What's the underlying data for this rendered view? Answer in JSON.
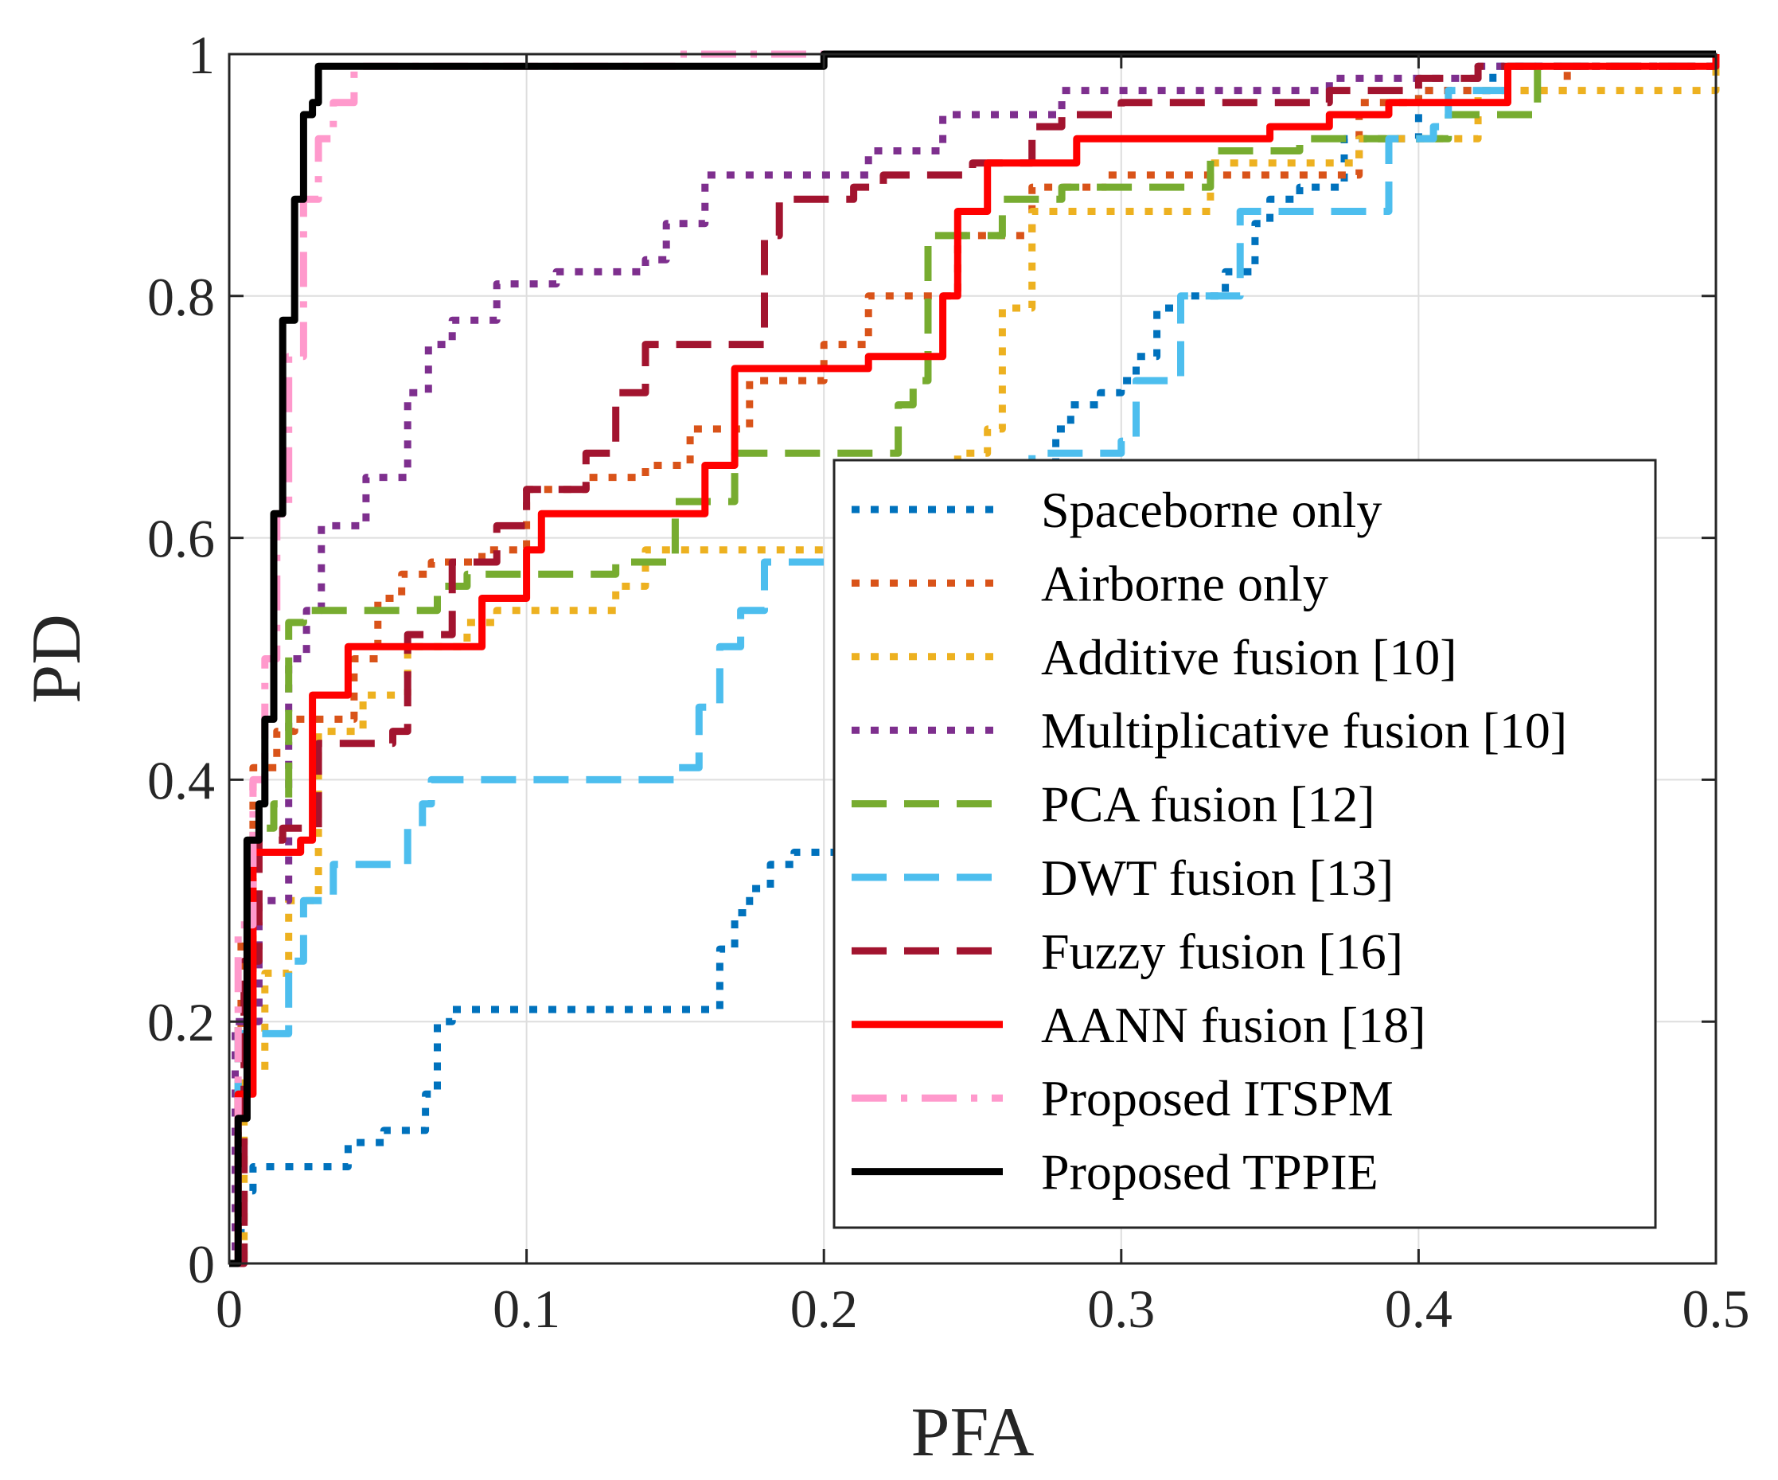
{
  "chart_data": {
    "type": "line",
    "title": "",
    "xlabel": "PFA",
    "ylabel": "PD",
    "xlim": [
      0,
      0.5
    ],
    "ylim": [
      0,
      1
    ],
    "xticks": [
      "0",
      "0.1",
      "0.2",
      "0.3",
      "0.4",
      "0.5"
    ],
    "yticks": [
      "0",
      "0.2",
      "0.4",
      "0.6",
      "0.8",
      "1"
    ],
    "grid": true,
    "legend_position": "lower-right",
    "series": [
      {
        "name": "Spaceborne only",
        "color": "#0072BD",
        "style": "dotted",
        "x": [
          0,
          0.004,
          0.008,
          0.033,
          0.04,
          0.052,
          0.062,
          0.066,
          0.07,
          0.075,
          0.16,
          0.165,
          0.17,
          0.175,
          0.182,
          0.19,
          0.2,
          0.215,
          0.25,
          0.272,
          0.278,
          0.283,
          0.293,
          0.3,
          0.305,
          0.312,
          0.32,
          0.335,
          0.345,
          0.35,
          0.36,
          0.375,
          0.4,
          0.425,
          0.5
        ],
        "y": [
          0,
          0.06,
          0.08,
          0.08,
          0.1,
          0.11,
          0.11,
          0.14,
          0.2,
          0.21,
          0.21,
          0.26,
          0.29,
          0.31,
          0.33,
          0.34,
          0.34,
          0.42,
          0.6,
          0.66,
          0.69,
          0.71,
          0.72,
          0.73,
          0.75,
          0.79,
          0.8,
          0.82,
          0.86,
          0.88,
          0.89,
          0.93,
          0.97,
          0.99,
          1.0
        ]
      },
      {
        "name": "Airborne only",
        "color": "#D95319",
        "style": "dotted",
        "x": [
          0,
          0.002,
          0.004,
          0.008,
          0.016,
          0.022,
          0.034,
          0.042,
          0.05,
          0.058,
          0.068,
          0.085,
          0.1,
          0.12,
          0.14,
          0.155,
          0.175,
          0.2,
          0.215,
          0.233,
          0.245,
          0.27,
          0.295,
          0.36,
          0.38,
          0.4,
          0.45,
          0.5
        ],
        "y": [
          0,
          0.18,
          0.27,
          0.41,
          0.44,
          0.45,
          0.45,
          0.5,
          0.55,
          0.57,
          0.58,
          0.59,
          0.64,
          0.65,
          0.66,
          0.69,
          0.73,
          0.76,
          0.8,
          0.8,
          0.85,
          0.89,
          0.9,
          0.9,
          0.96,
          0.97,
          0.99,
          1.0
        ]
      },
      {
        "name": "Additive fusion [10]",
        "color": "#EDB120",
        "style": "dotted",
        "x": [
          0,
          0.005,
          0.012,
          0.02,
          0.03,
          0.045,
          0.06,
          0.08,
          0.09,
          0.12,
          0.13,
          0.14,
          0.2,
          0.225,
          0.245,
          0.255,
          0.26,
          0.27,
          0.275,
          0.3,
          0.33,
          0.37,
          0.38,
          0.39,
          0.42,
          0.5
        ],
        "y": [
          0,
          0.16,
          0.24,
          0.3,
          0.44,
          0.47,
          0.51,
          0.53,
          0.54,
          0.54,
          0.56,
          0.59,
          0.59,
          0.61,
          0.67,
          0.69,
          0.79,
          0.87,
          0.87,
          0.87,
          0.91,
          0.91,
          0.93,
          0.93,
          0.97,
          1.0
        ]
      },
      {
        "name": "Multiplicative fusion [10]",
        "color": "#7E2F8E",
        "style": "dotted",
        "x": [
          0,
          0.002,
          0.01,
          0.02,
          0.026,
          0.031,
          0.037,
          0.046,
          0.06,
          0.067,
          0.075,
          0.09,
          0.11,
          0.14,
          0.147,
          0.16,
          0.2,
          0.215,
          0.24,
          0.255,
          0.28,
          0.32,
          0.37,
          0.42,
          0.5
        ],
        "y": [
          0,
          0.2,
          0.3,
          0.5,
          0.54,
          0.61,
          0.61,
          0.65,
          0.72,
          0.76,
          0.78,
          0.81,
          0.82,
          0.83,
          0.86,
          0.9,
          0.9,
          0.92,
          0.95,
          0.95,
          0.97,
          0.97,
          0.98,
          0.99,
          1.0
        ]
      },
      {
        "name": "PCA fusion [12]",
        "color": "#77AC30",
        "style": "dashed",
        "x": [
          0,
          0.003,
          0.008,
          0.015,
          0.02,
          0.025,
          0.055,
          0.07,
          0.08,
          0.1,
          0.13,
          0.15,
          0.165,
          0.17,
          0.2,
          0.22,
          0.225,
          0.23,
          0.235,
          0.26,
          0.28,
          0.33,
          0.36,
          0.41,
          0.44,
          0.5
        ],
        "y": [
          0,
          0.2,
          0.36,
          0.38,
          0.53,
          0.54,
          0.54,
          0.56,
          0.57,
          0.57,
          0.58,
          0.63,
          0.63,
          0.67,
          0.67,
          0.67,
          0.71,
          0.73,
          0.85,
          0.88,
          0.89,
          0.92,
          0.93,
          0.95,
          0.99,
          1.0
        ]
      },
      {
        "name": "DWT fusion [13]",
        "color": "#4DBEEE",
        "style": "dashed",
        "x": [
          0,
          0.003,
          0.018,
          0.02,
          0.025,
          0.035,
          0.04,
          0.06,
          0.065,
          0.068,
          0.145,
          0.15,
          0.158,
          0.165,
          0.172,
          0.18,
          0.2,
          0.23,
          0.27,
          0.3,
          0.305,
          0.32,
          0.34,
          0.375,
          0.39,
          0.405,
          0.41,
          0.43,
          0.5
        ],
        "y": [
          0,
          0.19,
          0.19,
          0.25,
          0.3,
          0.33,
          0.33,
          0.36,
          0.38,
          0.4,
          0.4,
          0.41,
          0.46,
          0.51,
          0.54,
          0.58,
          0.58,
          0.61,
          0.67,
          0.68,
          0.73,
          0.8,
          0.87,
          0.87,
          0.93,
          0.94,
          0.97,
          0.99,
          1.0
        ]
      },
      {
        "name": "Fuzzy fusion [16]",
        "color": "#A2142F",
        "style": "dashed",
        "x": [
          0,
          0.005,
          0.01,
          0.018,
          0.026,
          0.03,
          0.04,
          0.055,
          0.06,
          0.075,
          0.085,
          0.09,
          0.1,
          0.12,
          0.13,
          0.14,
          0.15,
          0.18,
          0.185,
          0.21,
          0.22,
          0.25,
          0.27,
          0.28,
          0.3,
          0.35,
          0.37,
          0.4,
          0.42,
          0.5
        ],
        "y": [
          0,
          0.25,
          0.35,
          0.36,
          0.36,
          0.43,
          0.43,
          0.44,
          0.52,
          0.58,
          0.58,
          0.61,
          0.64,
          0.67,
          0.72,
          0.76,
          0.76,
          0.85,
          0.88,
          0.89,
          0.9,
          0.91,
          0.94,
          0.95,
          0.96,
          0.96,
          0.97,
          0.98,
          0.99,
          1.0
        ]
      },
      {
        "name": "AANN fusion [18]",
        "color": "#FF0000",
        "style": "solid",
        "x": [
          0,
          0.003,
          0.008,
          0.012,
          0.024,
          0.028,
          0.036,
          0.04,
          0.06,
          0.085,
          0.09,
          0.1,
          0.105,
          0.12,
          0.155,
          0.16,
          0.165,
          0.17,
          0.18,
          0.215,
          0.23,
          0.24,
          0.245,
          0.255,
          0.275,
          0.285,
          0.3,
          0.35,
          0.37,
          0.39,
          0.42,
          0.43,
          0.46,
          0.5
        ],
        "y": [
          0,
          0.14,
          0.34,
          0.34,
          0.35,
          0.47,
          0.47,
          0.51,
          0.51,
          0.55,
          0.55,
          0.59,
          0.62,
          0.62,
          0.62,
          0.66,
          0.66,
          0.74,
          0.74,
          0.75,
          0.75,
          0.8,
          0.87,
          0.91,
          0.91,
          0.93,
          0.93,
          0.94,
          0.95,
          0.96,
          0.96,
          0.99,
          0.99,
          1.0
        ]
      },
      {
        "name": "Proposed ITSPM",
        "color": "#FF99CC",
        "style": "dashdot",
        "x": [
          0,
          0.003,
          0.008,
          0.012,
          0.016,
          0.02,
          0.025,
          0.03,
          0.035,
          0.042,
          0.15,
          0.2,
          0.5
        ],
        "y": [
          0,
          0.28,
          0.4,
          0.5,
          0.62,
          0.75,
          0.88,
          0.93,
          0.96,
          0.99,
          1.0,
          1.0,
          1.0
        ]
      },
      {
        "name": "Proposed TPPIE",
        "color": "#000000",
        "style": "solid",
        "x": [
          0,
          0.003,
          0.006,
          0.01,
          0.012,
          0.015,
          0.018,
          0.022,
          0.025,
          0.028,
          0.03,
          0.19,
          0.2,
          0.21,
          0.5
        ],
        "y": [
          0,
          0.12,
          0.35,
          0.38,
          0.45,
          0.62,
          0.78,
          0.88,
          0.95,
          0.96,
          0.99,
          0.99,
          1.0,
          1.0,
          1.0
        ]
      }
    ]
  }
}
